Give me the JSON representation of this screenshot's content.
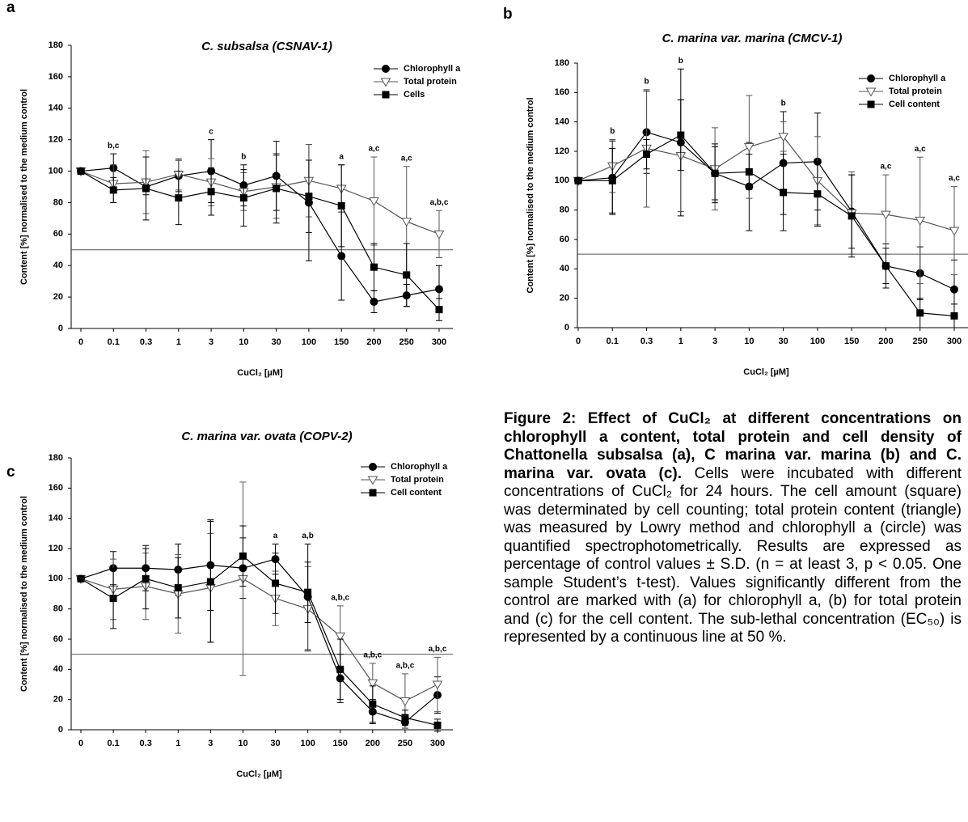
{
  "panel_labels": [
    "a",
    "b",
    "c"
  ],
  "chart_data": [
    {
      "type": "line",
      "title": "C. subsalsa (CSNAV-1)",
      "xlabel": "CuCl₂ [µM]",
      "ylabel": "Content [%] normalised to the medium control",
      "categories": [
        "0",
        "0.1",
        "0.3",
        "1",
        "3",
        "10",
        "30",
        "100",
        "150",
        "200",
        "250",
        "300"
      ],
      "ylim": [
        0,
        180
      ],
      "yticks": [
        0,
        20,
        40,
        60,
        80,
        100,
        120,
        140,
        160,
        180
      ],
      "threshold": 50,
      "grid": false,
      "legend": "upper right",
      "series": [
        {
          "name": "Chlorophyll a",
          "color": "#000000",
          "marker": "circle",
          "values": [
            100,
            102,
            90,
            97,
            100,
            91,
            97,
            80,
            46,
            17,
            21,
            25
          ],
          "errors": [
            0,
            9,
            5,
            10,
            20,
            13,
            22,
            37,
            28,
            7,
            7,
            15
          ]
        },
        {
          "name": "Total protein",
          "color": "#555555",
          "marker": "triangle-down",
          "values": [
            100,
            92,
            93,
            98,
            93,
            87,
            90,
            94,
            89,
            81,
            68,
            60
          ],
          "errors": [
            0,
            12,
            20,
            10,
            15,
            12,
            20,
            23,
            15,
            28,
            35,
            15
          ]
        },
        {
          "name": "Cells",
          "color": "#000000",
          "marker": "square",
          "values": [
            100,
            88,
            89,
            83,
            87,
            83,
            89,
            84,
            78,
            39,
            34,
            12
          ],
          "errors": [
            0,
            8,
            20,
            17,
            15,
            18,
            22,
            23,
            26,
            15,
            20,
            7
          ]
        }
      ],
      "annotations": [
        null,
        "b,c",
        null,
        null,
        "c",
        "b",
        null,
        null,
        "a",
        "a,c",
        "a,c",
        "a,b,c"
      ]
    },
    {
      "type": "line",
      "title": "C. marina var. marina (CMCV-1)",
      "xlabel": "CuCl₂ [µM]",
      "ylabel": "Content [%] normalised to the medium control",
      "categories": [
        "0",
        "0.1",
        "0.3",
        "1",
        "3",
        "10",
        "30",
        "100",
        "150",
        "200",
        "250",
        "300"
      ],
      "ylim": [
        0,
        180
      ],
      "yticks": [
        0,
        20,
        40,
        60,
        80,
        100,
        120,
        140,
        160,
        180
      ],
      "threshold": 50,
      "grid": false,
      "legend": "upper right",
      "series": [
        {
          "name": "Chlorophyll a",
          "color": "#000000",
          "marker": "circle",
          "values": [
            100,
            102,
            133,
            126,
            105,
            96,
            112,
            113,
            79,
            42,
            37,
            26
          ],
          "errors": [
            0,
            25,
            28,
            50,
            18,
            30,
            35,
            33,
            25,
            15,
            18,
            20
          ]
        },
        {
          "name": "Total protein",
          "color": "#555555",
          "marker": "triangle-down",
          "values": [
            100,
            110,
            122,
            117,
            108,
            123,
            130,
            100,
            78,
            77,
            73,
            66
          ],
          "errors": [
            0,
            18,
            40,
            38,
            28,
            35,
            10,
            30,
            28,
            27,
            43,
            30
          ]
        },
        {
          "name": "Cell content",
          "color": "#000000",
          "marker": "square",
          "values": [
            100,
            100,
            118,
            131,
            105,
            106,
            92,
            91,
            76,
            42,
            10,
            8
          ],
          "errors": [
            0,
            22,
            10,
            24,
            20,
            12,
            26,
            22,
            28,
            12,
            10,
            8
          ]
        }
      ],
      "annotations": [
        null,
        "b",
        "b",
        "b",
        null,
        null,
        "b",
        null,
        null,
        "a,c",
        "a,c",
        "a,c"
      ]
    },
    {
      "type": "line",
      "title": "C. marina var. ovata (COPV-2)",
      "xlabel": "CuCl₂ [µM]",
      "ylabel": "Content [%] normalised to the medium control",
      "categories": [
        "0",
        "0.1",
        "0.3",
        "1",
        "3",
        "10",
        "30",
        "100",
        "150",
        "200",
        "250",
        "300"
      ],
      "ylim": [
        0,
        180
      ],
      "yticks": [
        0,
        20,
        40,
        60,
        80,
        100,
        120,
        140,
        160,
        180
      ],
      "threshold": 50,
      "grid": false,
      "legend": "upper right",
      "series": [
        {
          "name": "Chlorophyll a",
          "color": "#000000",
          "marker": "circle",
          "values": [
            100,
            107,
            107,
            106,
            109,
            107,
            113,
            88,
            34,
            12,
            5,
            23
          ],
          "errors": [
            0,
            11,
            15,
            17,
            30,
            20,
            10,
            35,
            16,
            8,
            4,
            12
          ]
        },
        {
          "name": "Total protein",
          "color": "#555555",
          "marker": "triangle-down",
          "values": [
            100,
            93,
            95,
            90,
            94,
            100,
            87,
            80,
            62,
            31,
            19,
            30
          ],
          "errors": [
            0,
            20,
            22,
            26,
            36,
            64,
            18,
            28,
            20,
            13,
            18,
            18
          ]
        },
        {
          "name": "Cell content",
          "color": "#000000",
          "marker": "square",
          "values": [
            100,
            87,
            100,
            94,
            98,
            115,
            97,
            91,
            40,
            17,
            8,
            3
          ],
          "errors": [
            0,
            20,
            20,
            20,
            40,
            20,
            20,
            20,
            20,
            12,
            5,
            4
          ]
        }
      ],
      "annotations": [
        null,
        null,
        null,
        null,
        null,
        null,
        "a",
        "a,b",
        "a,b,c",
        "a,b,c",
        "a,b,c",
        "a,b,c"
      ]
    }
  ],
  "caption": {
    "heading": "Figure 2: Effect of CuCl₂ at different concentrations on chlorophyll a content, total protein and cell density of Chattonella subsalsa (a), C marina var. marina (b) and C. marina var. ovata (c).",
    "body": "Cells were incubated with different concentrations of CuCl₂ for 24 hours. The cell amount (square) was determinated by cell counting; total protein content (triangle) was measured by Lowry method and chlorophyll a (circle) was quantified spectrophotometrically. Results are expressed as percentage of control values ± S.D. (n = at least 3, p < 0.05. One sample Student’s t-test). Values significantly different from the control are marked with (a) for chlorophyll a, (b) for total protein and (c) for the cell content. The sub-lethal concentration (EC₅₀) is represented by a continuous line at 50 %."
  }
}
